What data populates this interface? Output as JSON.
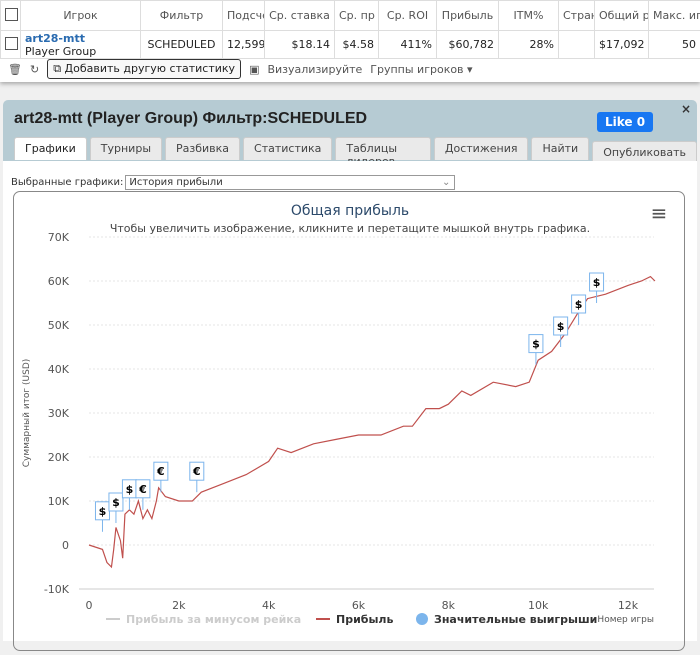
{
  "table": {
    "headers": [
      "Игрок",
      "Фильтр",
      "Подсче",
      "Ср. ставка",
      "Ср. пр",
      "Ср. ROI",
      "Прибыль",
      "ITM%",
      "Стран",
      "Общий р",
      "Макс. иг"
    ],
    "row": {
      "player": "art28-mtt",
      "group": "Player Group",
      "cells": [
        "SCHEDULED",
        "12,599",
        "$18.14",
        "$4.58",
        "411%",
        "$60,782",
        "28%",
        "",
        "$17,092",
        "50"
      ]
    }
  },
  "toolbar": {
    "add_stat": "Добавить другую статистику",
    "visualize": "Визуализируйте",
    "groups": "Группы игроков ▾"
  },
  "panel": {
    "title": "art28-mtt (Player Group) Фильтр:SCHEDULED",
    "like": "Like 0",
    "close": "×",
    "tabs": [
      "Графики",
      "Турниры",
      "Разбивка",
      "Статистика",
      "Таблицы лидеров",
      "Достижения",
      "Найти"
    ],
    "publish": "Опубликовать",
    "select_label": "Выбранные графики:",
    "select_value": "История прибыли"
  },
  "chart_data": {
    "type": "line",
    "title": "Общая прибыль",
    "subtitle": "Чтобы увеличить изображение, кликните и перетащите мышкой внутрь графика.",
    "xlabel": "Номер игры",
    "ylabel": "Суммарный итог (USD)",
    "xlim": [
      0,
      12600
    ],
    "ylim": [
      -10,
      70
    ],
    "xticks": [
      "0",
      "2k",
      "4k",
      "6k",
      "8k",
      "10k",
      "12k"
    ],
    "yticks": [
      "-10K",
      "0",
      "10K",
      "20K",
      "30K",
      "40K",
      "50K",
      "60K",
      "70K"
    ],
    "legend": [
      "Прибыль за минусом рейка",
      "Прибыль",
      "Значительные выигрыши"
    ],
    "series": [
      {
        "name": "Прибыль",
        "color": "#c0504d",
        "x": [
          0,
          300,
          400,
          500,
          550,
          600,
          700,
          750,
          800,
          900,
          1000,
          1100,
          1200,
          1300,
          1400,
          1500,
          1550,
          1700,
          2000,
          2300,
          2500,
          3000,
          3500,
          4000,
          4200,
          4500,
          5000,
          5500,
          6000,
          6500,
          7000,
          7200,
          7500,
          7800,
          8000,
          8300,
          8500,
          9000,
          9500,
          9800,
          10000,
          10300,
          10600,
          10900,
          11100,
          11500,
          12000,
          12300,
          12500,
          12600
        ],
        "y": [
          0,
          -1,
          -4,
          -5,
          -1,
          4,
          1,
          -3,
          7,
          8,
          7,
          10,
          6,
          8,
          6,
          10,
          13,
          11,
          10,
          10,
          12,
          14,
          16,
          19,
          22,
          21,
          23,
          24,
          25,
          25,
          27,
          27,
          31,
          31,
          32,
          35,
          34,
          37,
          36,
          37,
          42,
          44,
          48,
          53,
          56,
          57,
          59,
          60,
          61,
          60
        ]
      }
    ],
    "markers": [
      {
        "x": 300,
        "y": 3,
        "s": "$"
      },
      {
        "x": 600,
        "y": 5,
        "s": "$"
      },
      {
        "x": 900,
        "y": 8,
        "s": "$"
      },
      {
        "x": 1200,
        "y": 8,
        "s": "€"
      },
      {
        "x": 1600,
        "y": 12,
        "s": "€"
      },
      {
        "x": 2400,
        "y": 12,
        "s": "€"
      },
      {
        "x": 9950,
        "y": 41,
        "s": "$"
      },
      {
        "x": 10500,
        "y": 45,
        "s": "$"
      },
      {
        "x": 10900,
        "y": 50,
        "s": "$"
      },
      {
        "x": 11300,
        "y": 55,
        "s": "$"
      }
    ]
  }
}
